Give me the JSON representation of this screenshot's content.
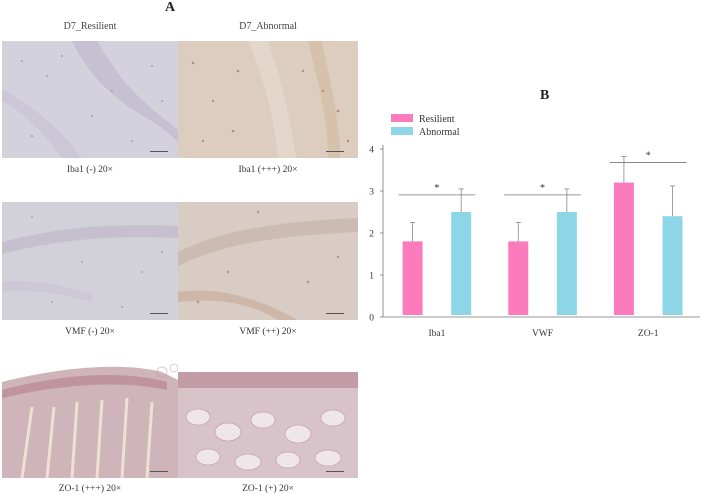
{
  "panel_a": {
    "letter": "A",
    "columns": [
      "D7_Resilient",
      "D7_Abnormal"
    ],
    "captions": [
      [
        "Iba1 (-) 20×",
        "Iba1 (+++) 20×"
      ],
      [
        "VMF (-) 20×",
        "VMF (++) 20×"
      ],
      [
        "ZO-1 (+++) 20×",
        "ZO-1 (+) 20×"
      ]
    ]
  },
  "panel_b": {
    "letter": "B"
  },
  "colors": {
    "resilient": "#fb7bbd",
    "abnormal": "#8dd6e8",
    "brain_tissue": "#cfccd6",
    "intestine_tissue": "#d8b9c0"
  },
  "chart_data": {
    "type": "bar",
    "title": "",
    "xlabel": "",
    "ylabel": "",
    "categories": [
      "Iba1",
      "VWF",
      "ZO-1"
    ],
    "series": [
      {
        "name": "Resilient",
        "values": [
          1.8,
          1.8,
          3.2
        ],
        "errors": [
          0.45,
          0.45,
          0.62
        ]
      },
      {
        "name": "Abnormal",
        "values": [
          2.5,
          2.5,
          2.4
        ],
        "errors": [
          0.55,
          0.55,
          0.72
        ]
      }
    ],
    "yticks": [
      0,
      1,
      2,
      3,
      4
    ],
    "ylim": [
      0,
      4
    ],
    "significance": [
      "*",
      "*",
      "*"
    ],
    "legend": "top-left"
  }
}
